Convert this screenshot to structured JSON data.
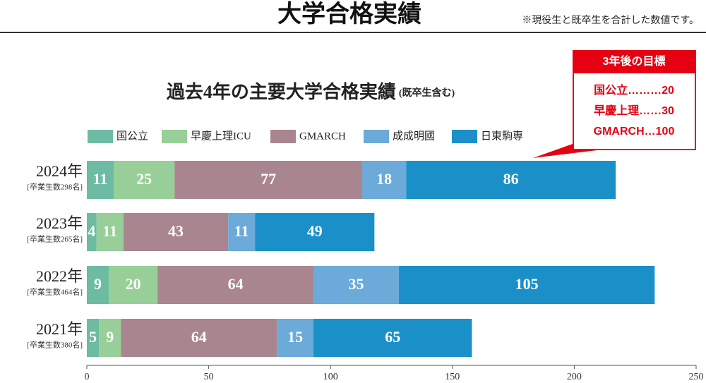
{
  "header": {
    "title": "大学合格実績",
    "note": "※現役生と既卒生を合計した数値です。"
  },
  "callout": {
    "title": "3年後の目標",
    "items": [
      "国公立………20",
      "早慶上理……30",
      "GMARCH…100"
    ]
  },
  "chart_data": {
    "type": "hbar-stacked",
    "title": "過去4年の主要大学合格実績",
    "subtitle": "(既卒生含む)",
    "categories": [
      "2024年",
      "2023年",
      "2022年",
      "2021年"
    ],
    "category_notes": [
      "[卒業生数298名]",
      "[卒業生数265名]",
      "[卒業生数464名]",
      "[卒業生数380名]"
    ],
    "series": [
      {
        "name": "国公立",
        "color": "#6dbba3",
        "values": [
          11,
          4,
          9,
          5
        ]
      },
      {
        "name": "早慶上理ICU",
        "color": "#98cf98",
        "values": [
          25,
          11,
          20,
          9
        ]
      },
      {
        "name": "GMARCH",
        "color": "#a9868f",
        "values": [
          77,
          43,
          64,
          64
        ]
      },
      {
        "name": "成成明國",
        "color": "#6baad9",
        "values": [
          18,
          11,
          35,
          15
        ]
      },
      {
        "name": "日東駒専",
        "color": "#1b90c8",
        "values": [
          86,
          49,
          105,
          65
        ]
      }
    ],
    "xlim": [
      0,
      250
    ],
    "xticks": [
      0,
      50,
      100,
      150,
      200,
      250
    ],
    "grid": false,
    "legend": "top"
  }
}
